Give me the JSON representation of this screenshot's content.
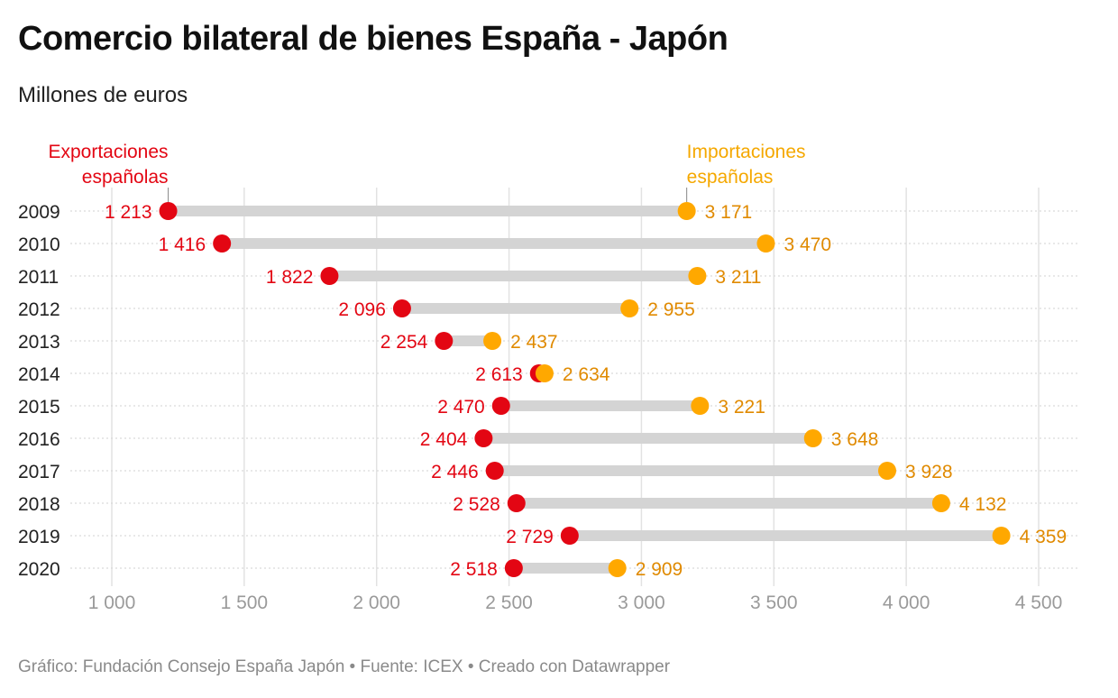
{
  "title": "Comercio bilateral de bienes España - Japón",
  "subtitle": "Millones de euros",
  "footer": "Gráfico: Fundación Consejo España Japón • Fuente: ICEX • Creado con Datawrapper",
  "colors": {
    "exports": "#e30613",
    "imports": "#ffa800",
    "imports_label": "#e08a00",
    "range_bar": "#d4d4d4",
    "grid": "#e2e2e2"
  },
  "chart_data": {
    "type": "range-dot",
    "title": "Comercio bilateral de bienes España - Japón",
    "subtitle": "Millones de euros",
    "categories": [
      "2009",
      "2010",
      "2011",
      "2012",
      "2013",
      "2014",
      "2015",
      "2016",
      "2017",
      "2018",
      "2019",
      "2020"
    ],
    "series": [
      {
        "name": "Exportaciones españolas",
        "labels": [
          "Exportaciones",
          "españolas"
        ],
        "values": [
          1213,
          1416,
          1822,
          2096,
          2254,
          2613,
          2470,
          2404,
          2446,
          2528,
          2729,
          2518
        ]
      },
      {
        "name": "Importaciones españolas",
        "labels": [
          "Importaciones",
          "españolas"
        ],
        "values": [
          3171,
          3470,
          3211,
          2955,
          2437,
          2634,
          3221,
          3648,
          3928,
          4132,
          4359,
          2909
        ]
      }
    ],
    "value_labels": {
      "exports": [
        "1 213",
        "1 416",
        "1 822",
        "2 096",
        "2 254",
        "2 613",
        "2 470",
        "2 404",
        "2 446",
        "2 528",
        "2 729",
        "2 518"
      ],
      "imports": [
        "3 171",
        "3 470",
        "3 211",
        "2 955",
        "2 437",
        "2 634",
        "3 221",
        "3 648",
        "3 928",
        "4 132",
        "4 359",
        "2 909"
      ]
    },
    "x_ticks": [
      1000,
      1500,
      2000,
      2500,
      3000,
      3500,
      4000,
      4500
    ],
    "x_tick_labels": [
      "1 000",
      "1 500",
      "2 000",
      "2 500",
      "3 000",
      "3 500",
      "4 000",
      "4 500"
    ],
    "xlim": [
      1000,
      4500
    ],
    "grid": true,
    "xlabel": "",
    "ylabel": ""
  }
}
